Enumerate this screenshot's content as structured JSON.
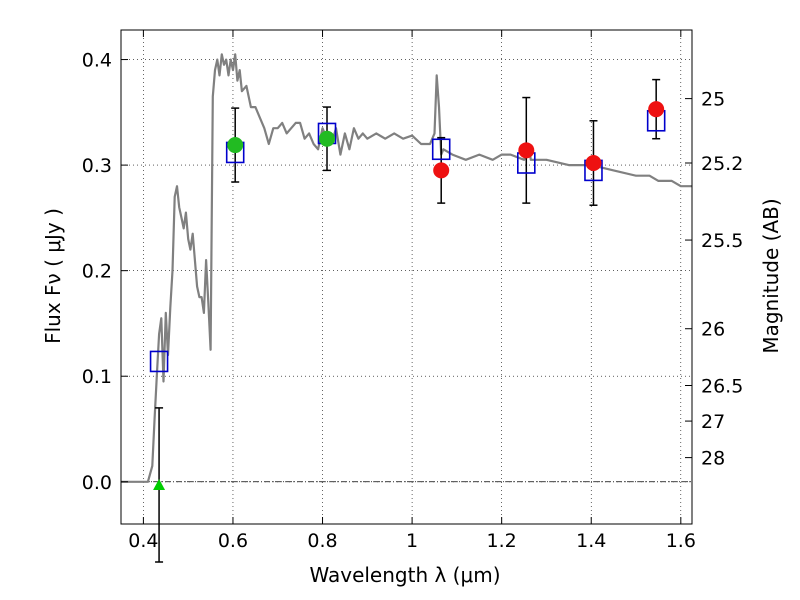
{
  "chart_data": {
    "type": "scatter",
    "xlabel": "Wavelength  λ (μm)",
    "ylabel": "Flux  Fν  ( μJy )",
    "ylabel_right": "Magnitude (AB)",
    "xlim": [
      0.35,
      1.625
    ],
    "ylim": [
      -0.04,
      0.428
    ],
    "grid": true,
    "x_ticks": [
      0.4,
      0.6,
      0.8,
      1.0,
      1.2,
      1.4,
      1.6
    ],
    "x_tick_labels": [
      "0.4",
      "0.6",
      "0.8",
      "1",
      "1.2",
      "1.4",
      "1.6"
    ],
    "y_ticks": [
      0.0,
      0.1,
      0.2,
      0.3,
      0.4
    ],
    "y_tick_labels": [
      "0.0",
      "0.1",
      "0.2",
      "0.3",
      "0.4"
    ],
    "mag_ticks": [
      {
        "label": "25",
        "flux": 0.363
      },
      {
        "label": "25.2",
        "flux": 0.302
      },
      {
        "label": "25.5",
        "flux": 0.229
      },
      {
        "label": "26",
        "flux": 0.145
      },
      {
        "label": "26.5",
        "flux": 0.0912
      },
      {
        "label": "27",
        "flux": 0.0575
      },
      {
        "label": "28",
        "flux": 0.0229
      }
    ],
    "sed_model": {
      "name": "model spectrum",
      "color": "#808080",
      "x": [
        0.35,
        0.4,
        0.41,
        0.42,
        0.425,
        0.43,
        0.435,
        0.44,
        0.445,
        0.45,
        0.455,
        0.46,
        0.465,
        0.47,
        0.475,
        0.48,
        0.485,
        0.49,
        0.495,
        0.5,
        0.505,
        0.51,
        0.515,
        0.52,
        0.525,
        0.53,
        0.535,
        0.54,
        0.545,
        0.55,
        0.555,
        0.56,
        0.565,
        0.57,
        0.575,
        0.58,
        0.585,
        0.59,
        0.595,
        0.6,
        0.605,
        0.61,
        0.615,
        0.62,
        0.63,
        0.64,
        0.65,
        0.66,
        0.67,
        0.68,
        0.69,
        0.7,
        0.71,
        0.72,
        0.73,
        0.74,
        0.75,
        0.76,
        0.77,
        0.78,
        0.79,
        0.8,
        0.81,
        0.82,
        0.83,
        0.84,
        0.85,
        0.86,
        0.87,
        0.88,
        0.89,
        0.9,
        0.92,
        0.94,
        0.96,
        0.98,
        1.0,
        1.02,
        1.04,
        1.05,
        1.055,
        1.06,
        1.065,
        1.07,
        1.09,
        1.12,
        1.15,
        1.18,
        1.2,
        1.22,
        1.25,
        1.26,
        1.265,
        1.27,
        1.3,
        1.35,
        1.4,
        1.45,
        1.5,
        1.53,
        1.55,
        1.58,
        1.6,
        1.625
      ],
      "y": [
        0.0,
        0.0,
        0.0,
        0.015,
        0.06,
        0.1,
        0.14,
        0.155,
        0.095,
        0.16,
        0.12,
        0.165,
        0.2,
        0.27,
        0.28,
        0.26,
        0.25,
        0.24,
        0.255,
        0.23,
        0.22,
        0.235,
        0.21,
        0.185,
        0.175,
        0.175,
        0.16,
        0.21,
        0.17,
        0.125,
        0.365,
        0.39,
        0.4,
        0.385,
        0.405,
        0.395,
        0.4,
        0.385,
        0.4,
        0.39,
        0.405,
        0.38,
        0.39,
        0.37,
        0.375,
        0.355,
        0.355,
        0.345,
        0.335,
        0.32,
        0.335,
        0.335,
        0.34,
        0.33,
        0.335,
        0.34,
        0.34,
        0.325,
        0.33,
        0.32,
        0.315,
        0.335,
        0.325,
        0.32,
        0.335,
        0.31,
        0.33,
        0.315,
        0.335,
        0.325,
        0.33,
        0.325,
        0.33,
        0.325,
        0.33,
        0.325,
        0.328,
        0.32,
        0.32,
        0.33,
        0.385,
        0.355,
        0.31,
        0.315,
        0.31,
        0.305,
        0.31,
        0.305,
        0.31,
        0.31,
        0.305,
        0.32,
        0.305,
        0.305,
        0.305,
        0.3,
        0.3,
        0.295,
        0.29,
        0.29,
        0.285,
        0.285,
        0.28,
        0.28
      ]
    },
    "model_points": {
      "name": "model photometry",
      "color": "#0000cc",
      "x": [
        0.435,
        0.605,
        0.81,
        1.065,
        1.255,
        1.405,
        1.545
      ],
      "y": [
        0.114,
        0.312,
        0.33,
        0.315,
        0.302,
        0.295,
        0.342
      ]
    },
    "observed_points": {
      "name": "observed photometry",
      "x": [
        0.435,
        0.605,
        0.81,
        1.065,
        1.255,
        1.405,
        1.545
      ],
      "y": [
        -0.003,
        0.319,
        0.325,
        0.295,
        0.314,
        0.302,
        0.353
      ],
      "err": [
        0.073,
        0.035,
        0.03,
        0.031,
        0.05,
        0.04,
        0.028
      ],
      "marker": [
        "triangle",
        "circle",
        "circle",
        "circle",
        "circle",
        "circle",
        "circle"
      ],
      "color": [
        "#00cc00",
        "#22bb22",
        "#22bb22",
        "#ee1111",
        "#ee1111",
        "#ee1111",
        "#ee1111"
      ]
    }
  }
}
